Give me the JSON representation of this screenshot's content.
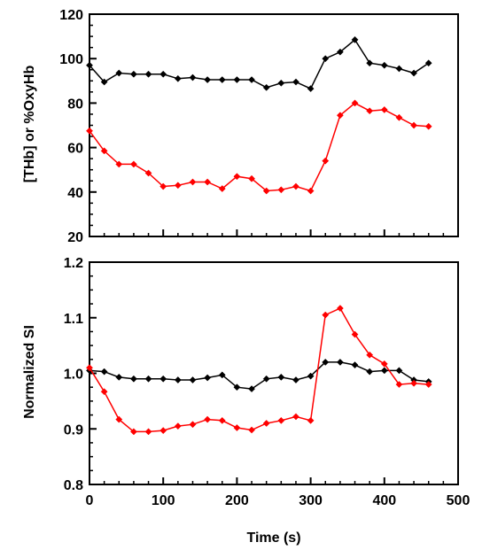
{
  "chart_data": [
    {
      "type": "line",
      "title": "",
      "xlabel": "",
      "ylabel": "[THb] or %OxyHb",
      "xlim": [
        0,
        500
      ],
      "ylim": [
        20,
        120
      ],
      "xticks": [
        0,
        100,
        200,
        300,
        400,
        500
      ],
      "yticks": [
        20,
        40,
        60,
        80,
        100,
        120
      ],
      "x_tick_labels_visible": false,
      "grid": false,
      "legend": "none",
      "series": [
        {
          "color": "#000000",
          "marker": "diamond",
          "x": [
            0,
            20,
            40,
            60,
            80,
            100,
            120,
            140,
            160,
            180,
            200,
            220,
            240,
            260,
            280,
            300,
            320,
            340,
            360,
            380,
            400,
            420,
            440,
            460
          ],
          "y": [
            97,
            89.5,
            93.5,
            93,
            93,
            93,
            91,
            91.5,
            90.5,
            90.5,
            90.5,
            90.5,
            87,
            89,
            89.5,
            86.5,
            100,
            103,
            108.5,
            98,
            97,
            95.5,
            93.5,
            98
          ]
        },
        {
          "color": "#ff0000",
          "marker": "diamond",
          "x": [
            0,
            20,
            40,
            60,
            80,
            100,
            120,
            140,
            160,
            180,
            200,
            220,
            240,
            260,
            280,
            300,
            320,
            340,
            360,
            380,
            400,
            420,
            440,
            460
          ],
          "y": [
            67.5,
            58.5,
            52.5,
            52.5,
            48.5,
            42.5,
            43,
            44.5,
            44.5,
            41.5,
            47,
            46,
            40.5,
            41,
            42.5,
            40.5,
            54,
            74.5,
            80,
            76.5,
            77,
            73.5,
            70,
            69.5
          ]
        }
      ]
    },
    {
      "type": "line",
      "title": "",
      "xlabel": "Time (s)",
      "ylabel": "Normalized SI",
      "xlim": [
        0,
        500
      ],
      "ylim": [
        0.8,
        1.2
      ],
      "xticks": [
        0,
        100,
        200,
        300,
        400,
        500
      ],
      "yticks": [
        0.8,
        0.9,
        1.0,
        1.1,
        1.2
      ],
      "ytick_labels": [
        "0.8",
        "0.9",
        "1.0",
        "1.1",
        "1.2"
      ],
      "x_tick_labels_visible": true,
      "grid": false,
      "legend": "none",
      "series": [
        {
          "color": "#000000",
          "marker": "diamond",
          "x": [
            0,
            20,
            40,
            60,
            80,
            100,
            120,
            140,
            160,
            180,
            200,
            220,
            240,
            260,
            280,
            300,
            320,
            340,
            360,
            380,
            400,
            420,
            440,
            460
          ],
          "y": [
            1.005,
            1.003,
            0.993,
            0.99,
            0.99,
            0.99,
            0.988,
            0.988,
            0.992,
            0.997,
            0.975,
            0.972,
            0.99,
            0.993,
            0.988,
            0.995,
            1.02,
            1.02,
            1.015,
            1.003,
            1.005,
            1.005,
            0.988,
            0.985
          ]
        },
        {
          "color": "#ff0000",
          "marker": "diamond",
          "x": [
            0,
            20,
            40,
            60,
            80,
            100,
            120,
            140,
            160,
            180,
            200,
            220,
            240,
            260,
            280,
            300,
            320,
            340,
            360,
            380,
            400,
            420,
            440,
            460
          ],
          "y": [
            1.01,
            0.967,
            0.917,
            0.895,
            0.895,
            0.897,
            0.905,
            0.908,
            0.917,
            0.915,
            0.902,
            0.898,
            0.91,
            0.915,
            0.922,
            0.915,
            1.105,
            1.117,
            1.07,
            1.033,
            1.017,
            0.98,
            0.982,
            0.98
          ]
        }
      ]
    }
  ]
}
